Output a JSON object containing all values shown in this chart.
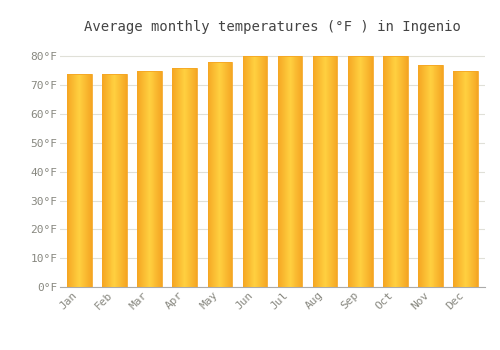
{
  "months": [
    "Jan",
    "Feb",
    "Mar",
    "Apr",
    "May",
    "Jun",
    "Jul",
    "Aug",
    "Sep",
    "Oct",
    "Nov",
    "Dec"
  ],
  "values": [
    74,
    74,
    75,
    76,
    78,
    80,
    80,
    80,
    80,
    80,
    77,
    75
  ],
  "bar_color_outer": "#F5A623",
  "bar_color_inner": "#FFD040",
  "title": "Average monthly temperatures (°F ) in Ingenio",
  "ylim": [
    0,
    85
  ],
  "yticks": [
    0,
    10,
    20,
    30,
    40,
    50,
    60,
    70,
    80
  ],
  "ytick_labels": [
    "0°F",
    "10°F",
    "20°F",
    "30°F",
    "40°F",
    "50°F",
    "60°F",
    "70°F",
    "80°F"
  ],
  "background_color": "#FFFFFF",
  "plot_bg_color": "#FFFFFF",
  "grid_color": "#E0E0D8",
  "title_fontsize": 10,
  "tick_fontsize": 8,
  "font_family": "monospace",
  "tick_color": "#888880",
  "bar_width": 0.7
}
